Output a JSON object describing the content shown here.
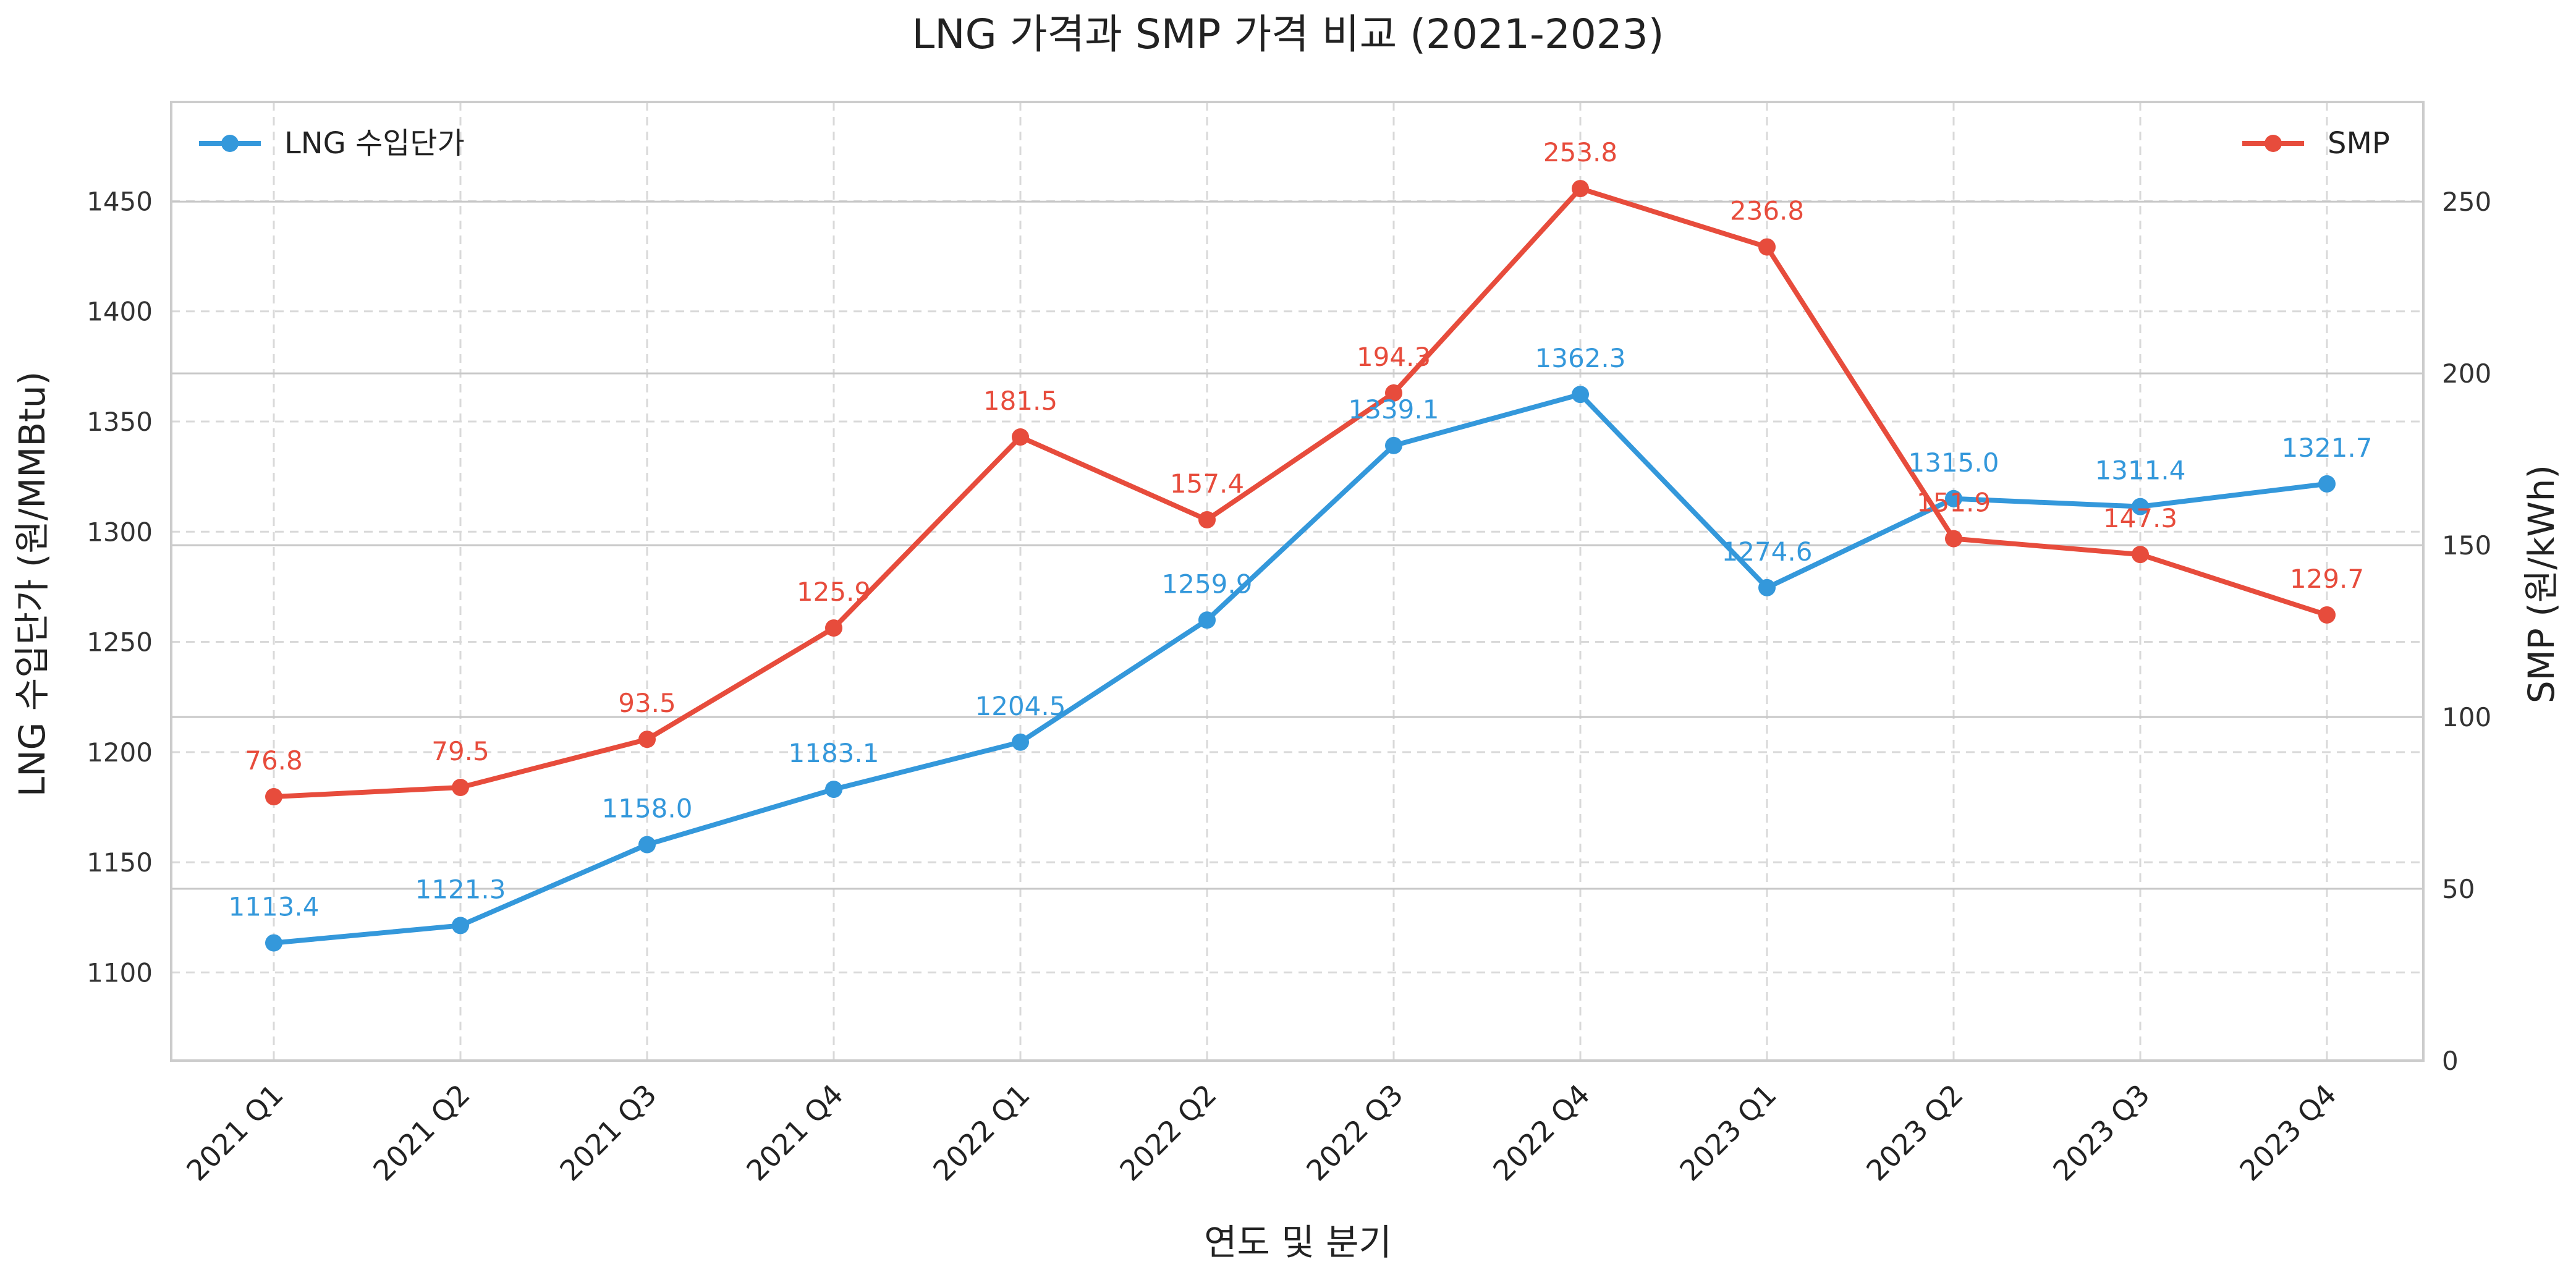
{
  "chart_data": {
    "type": "line",
    "title": "LNG 가격과 SMP 가격 비교 (2021-2023)",
    "xlabel": "연도 및 분기",
    "ylabel_left": "LNG 수입단가 (원/MMBtu)",
    "ylabel_right": "SMP (원/kWh)",
    "categories": [
      "2021 Q1",
      "2021 Q2",
      "2021 Q3",
      "2021 Q4",
      "2022 Q1",
      "2022 Q2",
      "2022 Q3",
      "2022 Q4",
      "2023 Q1",
      "2023 Q2",
      "2023 Q3",
      "2023 Q4"
    ],
    "ylim_left": [
      1060,
      1495
    ],
    "yticks_left": [
      1100,
      1150,
      1200,
      1250,
      1300,
      1350,
      1400,
      1450
    ],
    "ylim_right": [
      0,
      279
    ],
    "yticks_right": [
      0,
      50,
      100,
      150,
      200,
      250
    ],
    "grid": true,
    "series": [
      {
        "name": "LNG 수입단가",
        "axis": "left",
        "color": "#3498db",
        "values": [
          1113.4,
          1121.3,
          1158.0,
          1183.1,
          1204.5,
          1259.9,
          1339.1,
          1362.3,
          1274.6,
          1315.0,
          1311.4,
          1321.7
        ],
        "labels": [
          "1113.4",
          "1121.3",
          "1158.0",
          "1183.1",
          "1204.5",
          "1259.9",
          "1339.1",
          "1362.3",
          "1274.6",
          "1315.0",
          "1311.4",
          "1321.7"
        ],
        "legend_position": "top-left"
      },
      {
        "name": "SMP",
        "axis": "right",
        "color": "#e74c3c",
        "values": [
          76.8,
          79.5,
          93.5,
          125.9,
          181.5,
          157.4,
          194.3,
          253.8,
          236.8,
          151.9,
          147.3,
          129.7
        ],
        "labels": [
          "76.8",
          "79.5",
          "93.5",
          "125.9",
          "181.5",
          "157.4",
          "194.3",
          "253.8",
          "236.8",
          "151.9",
          "147.3",
          "129.7"
        ],
        "legend_position": "top-right"
      }
    ]
  }
}
